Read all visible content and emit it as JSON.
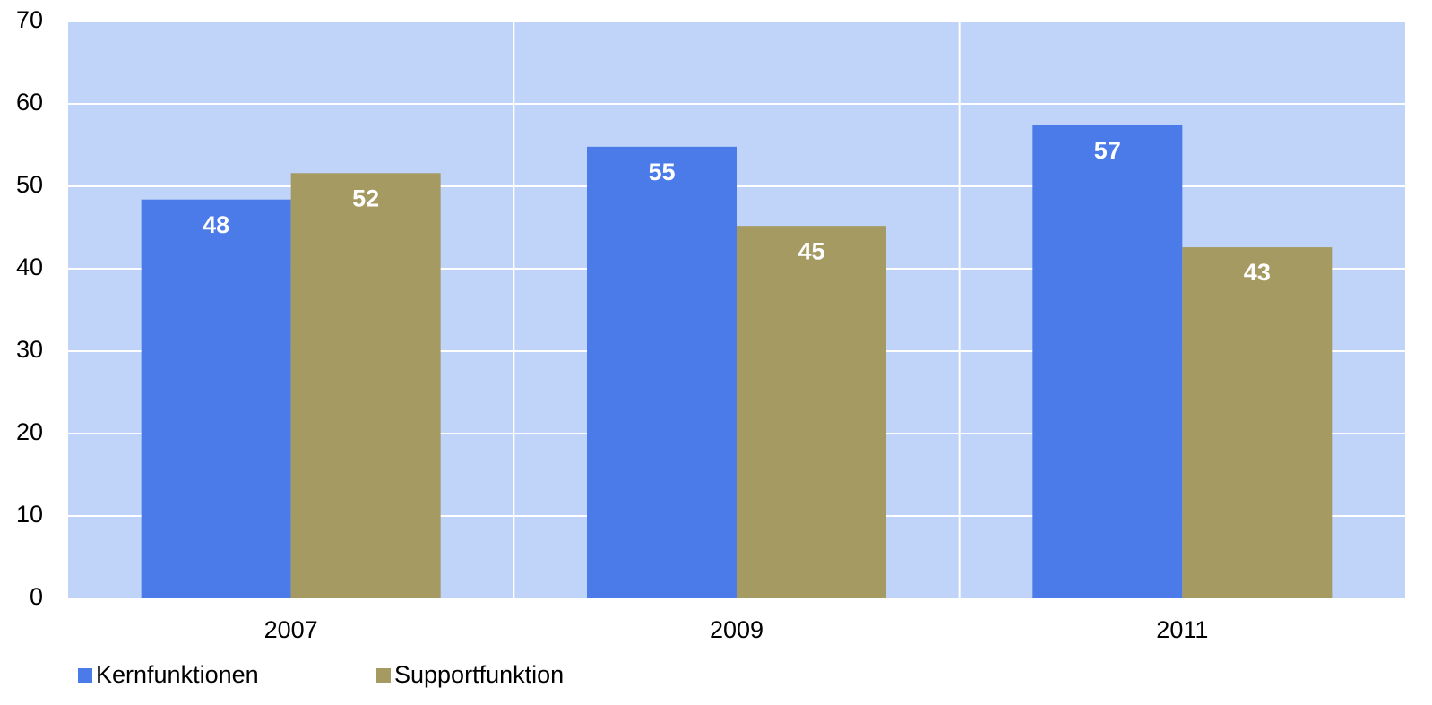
{
  "chart_data": {
    "type": "bar",
    "categories": [
      "2007",
      "2009",
      "2011"
    ],
    "series": [
      {
        "name": "Kernfunktionen",
        "color": "#4a7be8",
        "values": [
          48.4,
          54.8,
          57.4
        ],
        "value_labels": [
          "48",
          "55",
          "57"
        ]
      },
      {
        "name": "Supportfunktion",
        "color": "#a59a62",
        "values": [
          51.6,
          45.2,
          42.6
        ],
        "value_labels": [
          "52",
          "45",
          "43"
        ]
      }
    ],
    "ylim": [
      0,
      70
    ],
    "yticks": [
      0,
      10,
      20,
      30,
      40,
      50,
      60,
      70
    ],
    "grid": true,
    "legend": "bottom-left"
  }
}
